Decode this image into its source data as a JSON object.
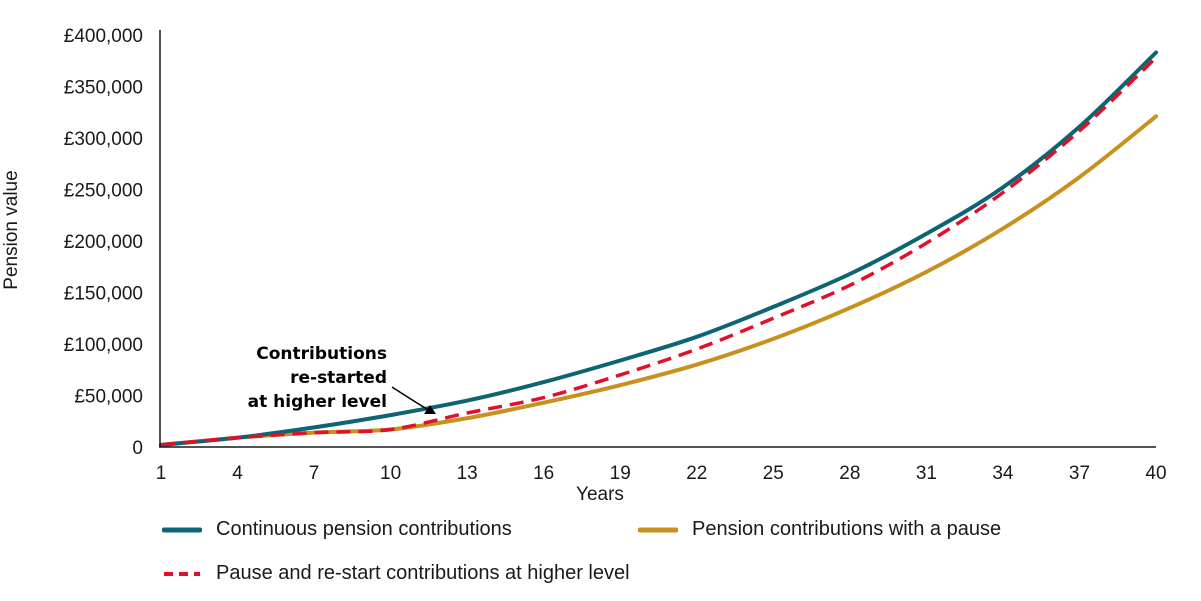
{
  "chart_data": {
    "type": "line",
    "xlabel": "Years",
    "ylabel": "Pension value",
    "xlim": [
      1,
      40
    ],
    "ylim": [
      0,
      400000
    ],
    "x_ticks": [
      1,
      4,
      7,
      10,
      13,
      16,
      19,
      22,
      25,
      28,
      31,
      34,
      37,
      40
    ],
    "y_ticks": [
      0,
      50000,
      100000,
      150000,
      200000,
      250000,
      300000,
      350000,
      400000
    ],
    "y_tick_labels": [
      "0",
      "£50,000",
      "£100,000",
      "£150,000",
      "£200,000",
      "£250,000",
      "£300,000",
      "£350,000",
      "£400,000"
    ],
    "x": [
      1,
      4,
      7,
      10,
      13,
      16,
      19,
      22,
      25,
      28,
      31,
      34,
      37,
      40
    ],
    "series": [
      {
        "name": "Continuous pension contributions",
        "color": "#0d6474",
        "style": "solid",
        "values": [
          2000,
          9000,
          19000,
          31000,
          45000,
          63000,
          84000,
          107000,
          136000,
          168000,
          207000,
          252000,
          311000,
          383000
        ]
      },
      {
        "name": "Pension contributions with a pause",
        "color": "#c8901c",
        "style": "solid",
        "values": [
          2000,
          9000,
          14000,
          17000,
          28000,
          43000,
          60000,
          80000,
          105000,
          135000,
          170000,
          212000,
          262000,
          321000
        ]
      },
      {
        "name": "Pause and re-start contributions at higher level",
        "color": "#e0102a",
        "style": "dashed",
        "values": [
          2000,
          9000,
          14000,
          17000,
          33000,
          48000,
          70000,
          95000,
          125000,
          157000,
          198000,
          247000,
          307000,
          378000
        ]
      }
    ],
    "annotation": {
      "lines": [
        "Contributions",
        "re-started",
        "at higher level"
      ],
      "points_to_x": 11.5
    },
    "legend_placement": "bottom",
    "grid": false
  }
}
